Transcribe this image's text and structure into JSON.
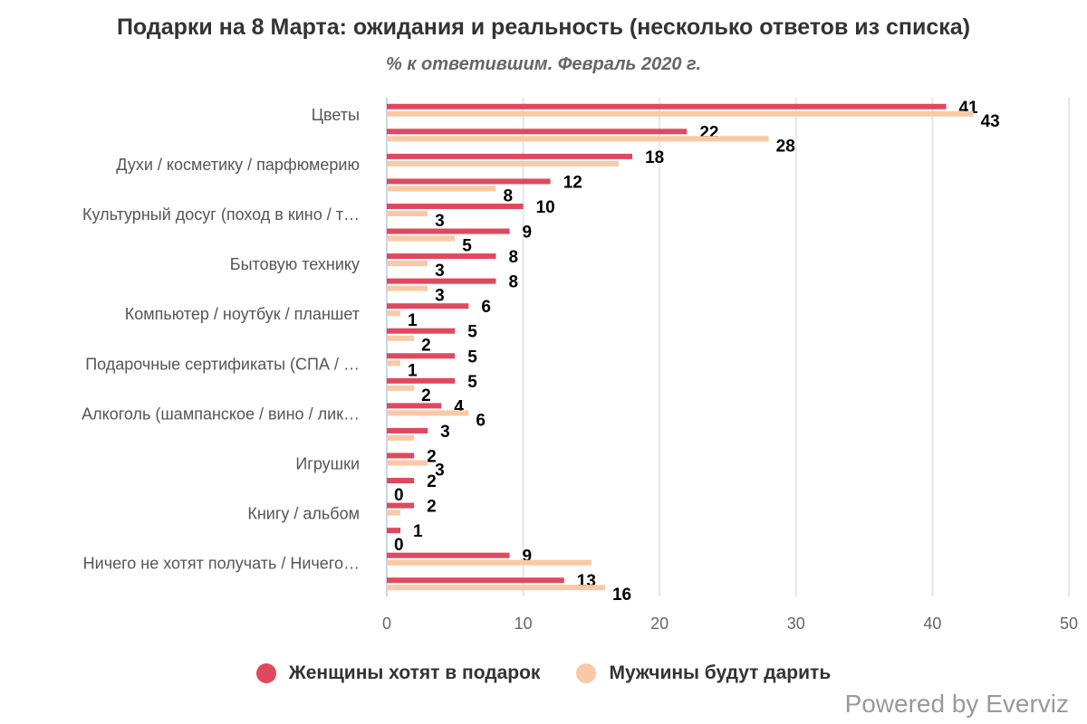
{
  "chart_data": {
    "type": "bar",
    "orientation": "horizontal",
    "title": "Подарки на 8 Марта: ожидания и реальность (несколько ответов из списка)",
    "subtitle": "% к ответившим. Февраль 2020 г.",
    "categories": [
      "Цветы",
      "",
      "Духи / косметику / парфюмерию",
      "",
      "Культурный досуг (поход в кино / т…",
      "",
      "Бытовую технику",
      "",
      "Компьютер / ноутбук / планшет",
      "",
      "Подарочные сертификаты (СПА / …",
      "",
      "Алкоголь (шампанское / вино / лик…",
      "",
      "Игрушки",
      "",
      "Книгу / альбом",
      "",
      "Ничего не хотят получать / Ничего…",
      ""
    ],
    "series": [
      {
        "name": "Женщины хотят в подарок",
        "color": "#e0485e",
        "values": [
          41,
          22,
          18,
          12,
          10,
          9,
          8,
          8,
          6,
          5,
          5,
          5,
          4,
          3,
          2,
          2,
          2,
          1,
          9,
          13
        ],
        "labels": [
          "41",
          "22",
          "18",
          "12",
          "10",
          "9",
          "8",
          "8",
          "6",
          "5",
          "5",
          "5",
          "4",
          "3",
          "2",
          "2",
          "2",
          "1",
          "9",
          "13"
        ]
      },
      {
        "name": "Мужчины будут дарить",
        "color": "#f9c9a5",
        "values": [
          43,
          28,
          17,
          8,
          3,
          5,
          3,
          3,
          1,
          2,
          1,
          2,
          6,
          2,
          3,
          0,
          1,
          0,
          15,
          16
        ],
        "labels": [
          "43",
          "28",
          null,
          "8",
          "3",
          "5",
          "3",
          "3",
          "1",
          "2",
          "1",
          "2",
          "6",
          null,
          "3",
          "0",
          null,
          "0",
          null,
          "16"
        ]
      }
    ],
    "xlim": [
      0,
      50
    ],
    "xticks": [
      "0",
      "10",
      "20",
      "30",
      "40",
      "50"
    ],
    "grid": true,
    "legend": "bottom"
  },
  "credits": "Powered by Everviz"
}
